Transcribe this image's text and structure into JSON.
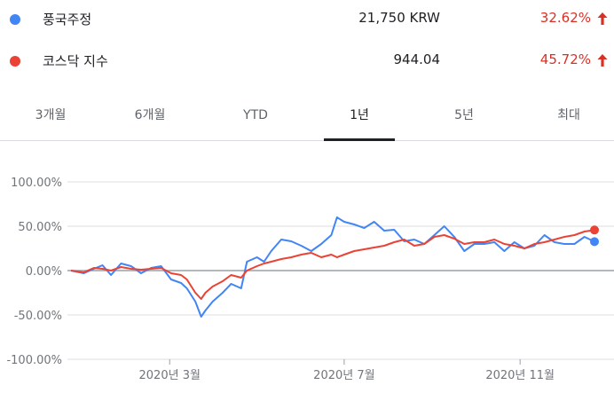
{
  "legend": [
    {
      "name": "풍국주정",
      "price": "21,750 KRW",
      "change": "32.62%",
      "color": "#4285f4",
      "trend_icon": "arrow-up-icon"
    },
    {
      "name": "코스닥 지수",
      "price": "944.04",
      "change": "45.72%",
      "color": "#ea4335",
      "trend_icon": "arrow-up-icon"
    }
  ],
  "tabs": [
    {
      "label": "3개월",
      "active": false
    },
    {
      "label": "6개월",
      "active": false
    },
    {
      "label": "YTD",
      "active": false
    },
    {
      "label": "1년",
      "active": true
    },
    {
      "label": "5년",
      "active": false
    },
    {
      "label": "최대",
      "active": false
    }
  ],
  "colors": {
    "up": "#d93025",
    "grid": "#dadce0",
    "zero": "#9aa0a6"
  },
  "chart_data": {
    "type": "line",
    "ylim": [
      -100,
      100
    ],
    "yticks": [
      {
        "value": 100,
        "label": "100.00%"
      },
      {
        "value": 50,
        "label": "50.00%"
      },
      {
        "value": 0,
        "label": "0.00%"
      },
      {
        "value": -50,
        "label": "-50.00%"
      },
      {
        "value": -100,
        "label": "-100.00%"
      }
    ],
    "xlim": [
      "2019-12-23",
      "2020-12-23"
    ],
    "xticks": [
      {
        "date": "2020-03-01",
        "label": "2020년 3월"
      },
      {
        "date": "2020-07-01",
        "label": "2020년 7월"
      },
      {
        "date": "2020-11-01",
        "label": "2020년 11월"
      }
    ],
    "series": [
      {
        "name": "풍국주정",
        "color": "#4285f4",
        "x": [
          "2019-12-23",
          "2020-01-01",
          "2020-01-08",
          "2020-01-14",
          "2020-01-20",
          "2020-01-27",
          "2020-02-03",
          "2020-02-10",
          "2020-02-17",
          "2020-02-24",
          "2020-03-02",
          "2020-03-09",
          "2020-03-13",
          "2020-03-19",
          "2020-03-23",
          "2020-03-26",
          "2020-03-31",
          "2020-04-07",
          "2020-04-13",
          "2020-04-20",
          "2020-04-24",
          "2020-05-01",
          "2020-05-06",
          "2020-05-11",
          "2020-05-18",
          "2020-05-25",
          "2020-06-01",
          "2020-06-08",
          "2020-06-15",
          "2020-06-22",
          "2020-06-26",
          "2020-07-01",
          "2020-07-08",
          "2020-07-15",
          "2020-07-22",
          "2020-07-29",
          "2020-08-05",
          "2020-08-12",
          "2020-08-19",
          "2020-08-26",
          "2020-09-02",
          "2020-09-09",
          "2020-09-16",
          "2020-09-23",
          "2020-09-30",
          "2020-10-07",
          "2020-10-14",
          "2020-10-21",
          "2020-10-28",
          "2020-11-04",
          "2020-11-11",
          "2020-11-18",
          "2020-11-25",
          "2020-12-02",
          "2020-12-09",
          "2020-12-16",
          "2020-12-23"
        ],
        "values": [
          0,
          -3,
          2,
          6,
          -5,
          8,
          5,
          -3,
          3,
          5,
          -10,
          -14,
          -20,
          -35,
          -52,
          -45,
          -35,
          -25,
          -15,
          -20,
          10,
          15,
          10,
          22,
          35,
          33,
          28,
          22,
          30,
          40,
          60,
          55,
          52,
          48,
          55,
          45,
          46,
          33,
          35,
          30,
          40,
          50,
          38,
          22,
          30,
          30,
          32,
          22,
          32,
          25,
          28,
          40,
          32,
          30,
          30,
          38,
          32.62
        ]
      },
      {
        "name": "코스닥 지수",
        "color": "#ea4335",
        "x": [
          "2019-12-23",
          "2020-01-01",
          "2020-01-08",
          "2020-01-14",
          "2020-01-20",
          "2020-01-27",
          "2020-02-03",
          "2020-02-10",
          "2020-02-17",
          "2020-02-24",
          "2020-03-02",
          "2020-03-09",
          "2020-03-13",
          "2020-03-19",
          "2020-03-23",
          "2020-03-26",
          "2020-03-31",
          "2020-04-07",
          "2020-04-13",
          "2020-04-20",
          "2020-04-24",
          "2020-05-01",
          "2020-05-06",
          "2020-05-11",
          "2020-05-18",
          "2020-05-25",
          "2020-06-01",
          "2020-06-08",
          "2020-06-15",
          "2020-06-22",
          "2020-06-26",
          "2020-07-01",
          "2020-07-08",
          "2020-07-15",
          "2020-07-22",
          "2020-07-29",
          "2020-08-05",
          "2020-08-12",
          "2020-08-19",
          "2020-08-26",
          "2020-09-02",
          "2020-09-09",
          "2020-09-16",
          "2020-09-23",
          "2020-09-30",
          "2020-10-07",
          "2020-10-14",
          "2020-10-21",
          "2020-10-28",
          "2020-11-04",
          "2020-11-11",
          "2020-11-18",
          "2020-11-25",
          "2020-12-02",
          "2020-12-09",
          "2020-12-16",
          "2020-12-23"
        ],
        "values": [
          0,
          -2,
          3,
          2,
          0,
          4,
          2,
          1,
          2,
          3,
          -3,
          -5,
          -10,
          -25,
          -32,
          -25,
          -18,
          -12,
          -5,
          -8,
          0,
          5,
          8,
          10,
          13,
          15,
          18,
          20,
          15,
          18,
          15,
          18,
          22,
          24,
          26,
          28,
          32,
          35,
          28,
          30,
          38,
          40,
          36,
          30,
          32,
          32,
          35,
          30,
          28,
          25,
          30,
          32,
          35,
          38,
          40,
          44,
          45.72
        ]
      }
    ]
  }
}
